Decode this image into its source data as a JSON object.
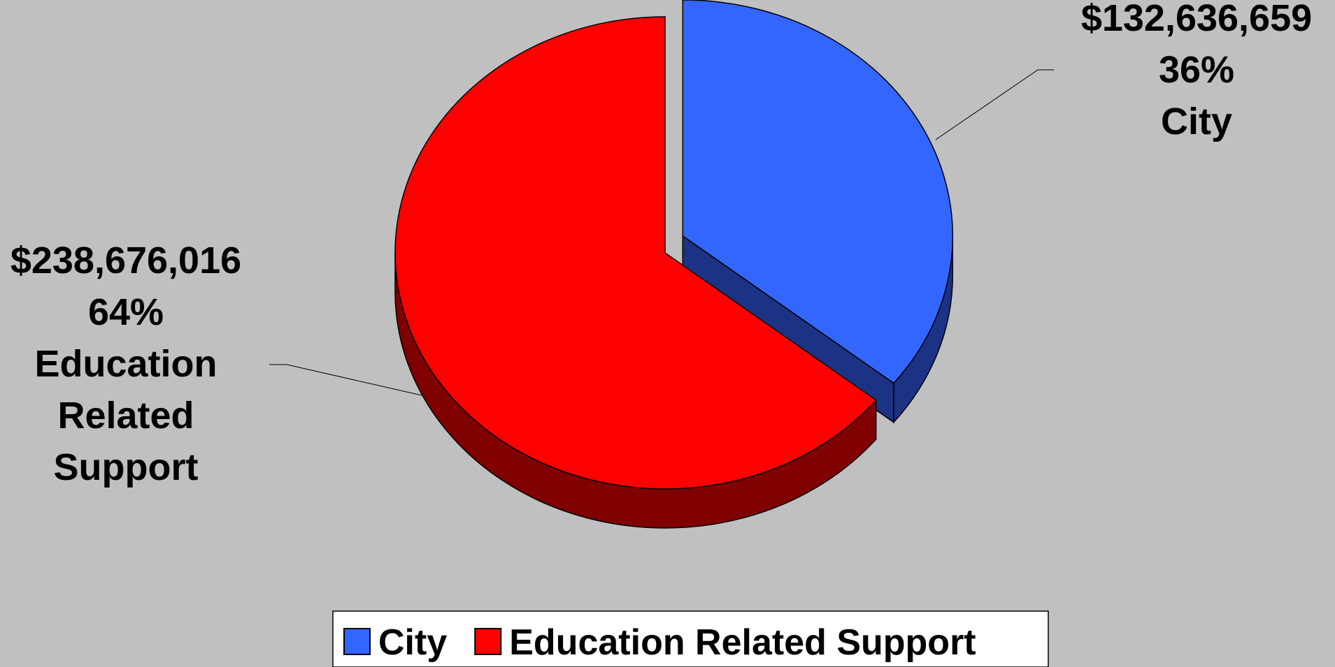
{
  "chart_data": {
    "type": "pie",
    "title": "",
    "slices": [
      {
        "name": "City",
        "value": 132636659,
        "value_label": "$132,636,659",
        "percent": 36,
        "percent_label": "36%",
        "label_lines": [
          "City"
        ],
        "color": "#3366ff",
        "side_color": "#1c3385"
      },
      {
        "name": "Education Related Support",
        "value": 238676016,
        "value_label": "$238,676,016",
        "percent": 64,
        "percent_label": "64%",
        "label_lines": [
          "Education",
          "Related",
          "Support"
        ],
        "color": "#ff0000",
        "side_color": "#800000"
      }
    ],
    "legend": {
      "placement": "bottom",
      "entries": [
        "City",
        "Education Related Support"
      ]
    },
    "background": "#c0c0c0"
  }
}
